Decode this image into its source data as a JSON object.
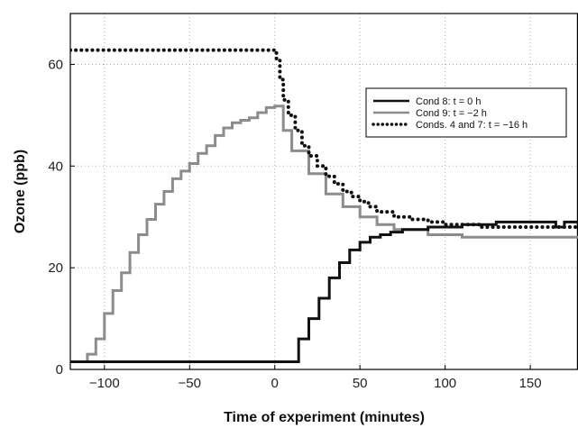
{
  "chart_data": {
    "type": "line",
    "xlabel": "Time of experiment (minutes)",
    "ylabel": "Ozone (ppb)",
    "xlim": [
      -120,
      178
    ],
    "ylim": [
      0,
      70
    ],
    "x_ticks": [
      "−100",
      "−50",
      "0",
      "50",
      "100",
      "150"
    ],
    "y_ticks": [
      "0",
      "20",
      "40",
      "60"
    ],
    "x_tick_values": [
      -100,
      -50,
      0,
      50,
      100,
      150
    ],
    "y_tick_values": [
      0,
      20,
      40,
      60
    ],
    "grid": true,
    "legend_position": "upper-right",
    "series": [
      {
        "name": "Cond 8: t = 0 h",
        "color": "#111111",
        "style": "solid",
        "x": [
          -120,
          7,
          8,
          14,
          20,
          26,
          32,
          38,
          44,
          50,
          56,
          62,
          68,
          75,
          90,
          110,
          130,
          150,
          165,
          170,
          178
        ],
        "y": [
          1.5,
          1.5,
          1.5,
          6,
          10,
          14,
          18,
          21,
          23.5,
          25,
          26,
          26.5,
          27,
          27.5,
          28,
          28.5,
          29,
          29,
          28,
          29,
          28.5
        ]
      },
      {
        "name": "Cond 9: t = −2 h",
        "color": "#8c8c8c",
        "style": "solid",
        "x": [
          -120,
          -113,
          -110,
          -105,
          -100,
          -95,
          -90,
          -85,
          -80,
          -75,
          -70,
          -65,
          -60,
          -55,
          -50,
          -45,
          -40,
          -35,
          -30,
          -25,
          -20,
          -15,
          -10,
          -5,
          0,
          5,
          10,
          20,
          30,
          40,
          50,
          60,
          70,
          90,
          110,
          130,
          150,
          178
        ],
        "y": [
          1.5,
          1.5,
          3,
          6,
          11,
          15.5,
          19,
          23,
          26.5,
          29.5,
          32.5,
          35,
          37.5,
          39,
          40.5,
          42.5,
          44,
          46,
          47.5,
          48.5,
          49,
          49.5,
          50.5,
          51.5,
          51.8,
          47,
          43,
          38.5,
          34.5,
          32,
          30,
          28.5,
          27.5,
          26.5,
          26,
          26,
          26,
          26
        ]
      },
      {
        "name": "Conds. 4 and 7: t = −16 h",
        "color": "#111111",
        "style": "dotted",
        "x": [
          -120,
          -100,
          -80,
          -60,
          -40,
          -20,
          -5,
          0,
          1,
          3,
          5,
          8,
          12,
          16,
          20,
          25,
          30,
          35,
          40,
          45,
          50,
          55,
          60,
          70,
          80,
          90,
          100,
          120,
          140,
          160,
          178
        ],
        "y": [
          62.8,
          62.8,
          62.8,
          62.8,
          62.8,
          62.8,
          62.8,
          62.8,
          61,
          57,
          53,
          50,
          47,
          44,
          42,
          40,
          38,
          36.5,
          35,
          34,
          33,
          32,
          31,
          30,
          29.5,
          29,
          28.5,
          28,
          28,
          28,
          28
        ]
      }
    ]
  }
}
